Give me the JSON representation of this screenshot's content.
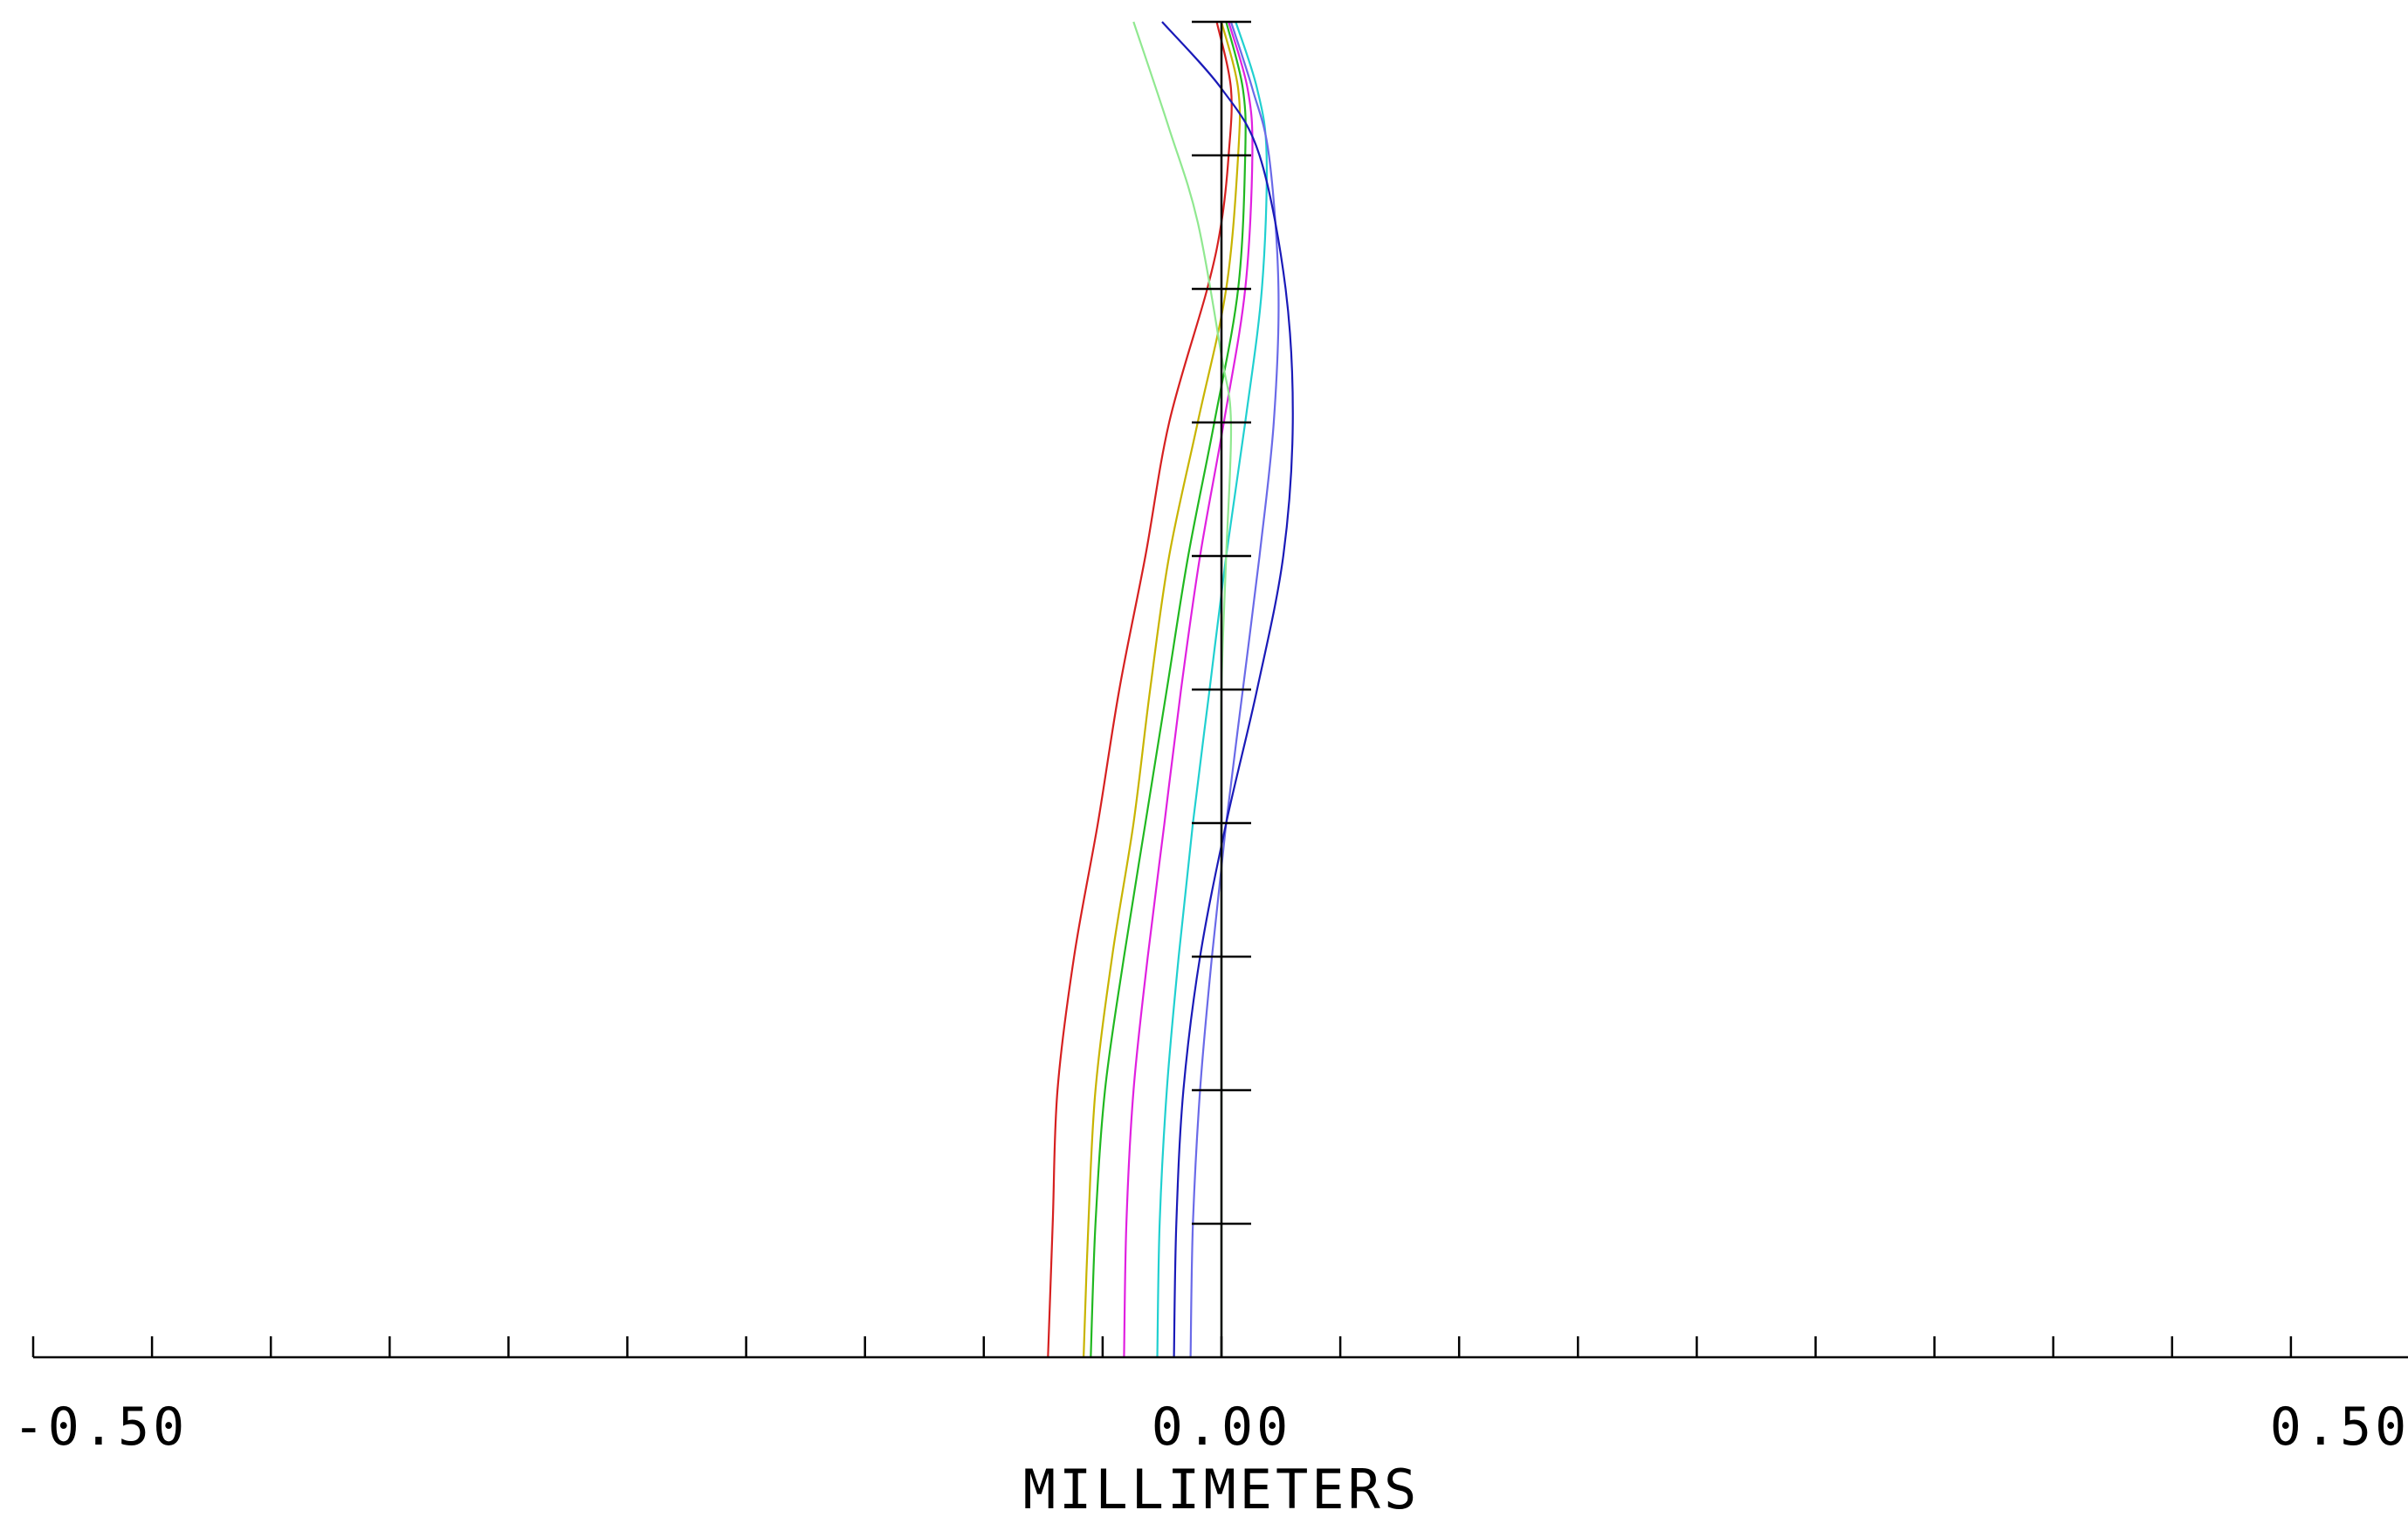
{
  "chart_data": {
    "type": "line",
    "xlabel": "MILLIMETERS",
    "ylabel": "",
    "title": "",
    "xlim": [
      -0.5,
      0.5
    ],
    "ylim": [
      0,
      1
    ],
    "x_tick_labels": [
      {
        "value": -0.5,
        "label": "-0.50"
      },
      {
        "value": 0.0,
        "label": "0.00"
      },
      {
        "value": 0.5,
        "label": "0.50"
      }
    ],
    "x_minor_tick_step": 0.05,
    "y_tick_step": 0.1,
    "grid": false,
    "legend": "none",
    "series": [
      {
        "color": "#d62020",
        "points": [
          [
            -0.073,
            0
          ],
          [
            -0.071,
            0.1
          ],
          [
            -0.069,
            0.2
          ],
          [
            -0.062,
            0.3
          ],
          [
            -0.052,
            0.4
          ],
          [
            -0.043,
            0.5
          ],
          [
            -0.032,
            0.6
          ],
          [
            -0.022,
            0.7
          ],
          [
            -0.006,
            0.8
          ],
          [
            0,
            0.85
          ],
          [
            0.003,
            0.9
          ],
          [
            0.004,
            0.95
          ],
          [
            -0.002,
            1.0
          ]
        ]
      },
      {
        "color": "#c8b400",
        "points": [
          [
            -0.058,
            0
          ],
          [
            -0.056,
            0.1
          ],
          [
            -0.053,
            0.2
          ],
          [
            -0.046,
            0.3
          ],
          [
            -0.037,
            0.4
          ],
          [
            -0.03,
            0.5
          ],
          [
            -0.022,
            0.6
          ],
          [
            -0.01,
            0.7
          ],
          [
            0.002,
            0.8
          ],
          [
            0.007,
            0.9
          ],
          [
            0.007,
            0.95
          ],
          [
            0.0,
            1.0
          ]
        ]
      },
      {
        "color": "#20b820",
        "points": [
          [
            -0.055,
            0
          ],
          [
            -0.053,
            0.1
          ],
          [
            -0.049,
            0.2
          ],
          [
            -0.041,
            0.3
          ],
          [
            -0.032,
            0.4
          ],
          [
            -0.023,
            0.5
          ],
          [
            -0.014,
            0.6
          ],
          [
            -0.003,
            0.7
          ],
          [
            0.007,
            0.8
          ],
          [
            0.01,
            0.9
          ],
          [
            0.009,
            0.95
          ],
          [
            0.002,
            1.0
          ]
        ]
      },
      {
        "color": "#e020e0",
        "points": [
          [
            -0.041,
            0
          ],
          [
            -0.04,
            0.1
          ],
          [
            -0.037,
            0.2
          ],
          [
            -0.031,
            0.3
          ],
          [
            -0.024,
            0.4
          ],
          [
            -0.017,
            0.5
          ],
          [
            -0.009,
            0.6
          ],
          [
            0.001,
            0.7
          ],
          [
            0.01,
            0.8
          ],
          [
            0.013,
            0.9
          ],
          [
            0.011,
            0.95
          ],
          [
            0.003,
            1.0
          ]
        ]
      },
      {
        "color": "#20d0d0",
        "points": [
          [
            -0.027,
            0
          ],
          [
            -0.026,
            0.1
          ],
          [
            -0.023,
            0.2
          ],
          [
            -0.018,
            0.3
          ],
          [
            -0.012,
            0.4
          ],
          [
            -0.005,
            0.5
          ],
          [
            0.002,
            0.6
          ],
          [
            0.01,
            0.7
          ],
          [
            0.017,
            0.8
          ],
          [
            0.019,
            0.9
          ],
          [
            0.015,
            0.95
          ],
          [
            0.006,
            1.0
          ]
        ]
      },
      {
        "color": "#6a6ae8",
        "points": [
          [
            -0.013,
            0
          ],
          [
            -0.012,
            0.1
          ],
          [
            -0.009,
            0.2
          ],
          [
            -0.004,
            0.3
          ],
          [
            0.002,
            0.4
          ],
          [
            0.009,
            0.5
          ],
          [
            0.016,
            0.6
          ],
          [
            0.022,
            0.7
          ],
          [
            0.024,
            0.8
          ],
          [
            0.02,
            0.9
          ],
          [
            0.013,
            0.95
          ],
          [
            0.004,
            1.0
          ]
        ]
      },
      {
        "color": "#1a1ab8",
        "points": [
          [
            -0.02,
            0
          ],
          [
            -0.019,
            0.1
          ],
          [
            -0.016,
            0.2
          ],
          [
            -0.009,
            0.3
          ],
          [
            0.002,
            0.4
          ],
          [
            0.015,
            0.5
          ],
          [
            0.026,
            0.6
          ],
          [
            0.03,
            0.7
          ],
          [
            0.027,
            0.8
          ],
          [
            0.016,
            0.9
          ],
          [
            0.0,
            0.95
          ],
          [
            -0.025,
            1.0
          ]
        ]
      },
      {
        "color": "#90e890",
        "points": [
          [
            0.0,
            0
          ],
          [
            0.0,
            0.1
          ],
          [
            0.0,
            0.2
          ],
          [
            0.0,
            0.3
          ],
          [
            0.0,
            0.4
          ],
          [
            0.0,
            0.5
          ],
          [
            0.002,
            0.6
          ],
          [
            0.004,
            0.7
          ],
          [
            0.0,
            0.75
          ],
          [
            -0.01,
            0.85
          ],
          [
            -0.022,
            0.92
          ],
          [
            -0.037,
            1.0
          ]
        ]
      }
    ]
  }
}
